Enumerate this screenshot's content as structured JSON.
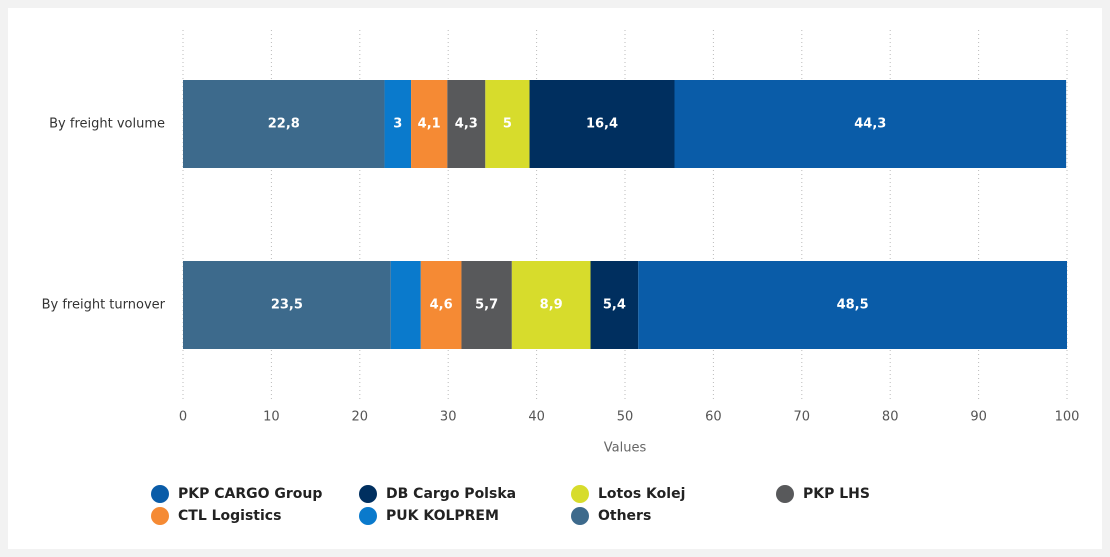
{
  "chart_data": {
    "type": "bar",
    "orientation": "horizontal",
    "stacked": true,
    "x_label": "Values",
    "categories": [
      "By freight volume",
      "By freight turnover"
    ],
    "series": [
      {
        "name": "PKP CARGO Group",
        "color": "#0a5ca8",
        "values": [
          44.3,
          48.5
        ],
        "value_labels": [
          "44,3",
          "48,5"
        ]
      },
      {
        "name": "DB Cargo Polska",
        "color": "#002f5f",
        "values": [
          16.4,
          5.4
        ],
        "value_labels": [
          "16,4",
          "5,4"
        ]
      },
      {
        "name": "Lotos Kolej",
        "color": "#d7dc2c",
        "values": [
          5,
          8.9
        ],
        "value_labels": [
          "5",
          "8,9"
        ]
      },
      {
        "name": "PKP LHS",
        "color": "#58595b",
        "values": [
          4.3,
          5.7
        ],
        "value_labels": [
          "4,3",
          "5,7"
        ]
      },
      {
        "name": "CTL Logistics",
        "color": "#f58a34",
        "values": [
          4.1,
          4.6
        ],
        "value_labels": [
          "4,1",
          "4,6"
        ]
      },
      {
        "name": "PUK KOLPREM",
        "color": "#0a7acc",
        "values": [
          3,
          3.4
        ],
        "value_labels": [
          "3",
          null
        ]
      },
      {
        "name": "Others",
        "color": "#3d6a8c",
        "values": [
          22.8,
          23.5
        ],
        "value_labels": [
          "22,8",
          "23,5"
        ]
      }
    ],
    "xlim": [
      0,
      100
    ],
    "xticks": [
      0,
      10,
      20,
      30,
      40,
      50,
      60,
      70,
      80,
      90,
      100
    ],
    "grid": true
  }
}
